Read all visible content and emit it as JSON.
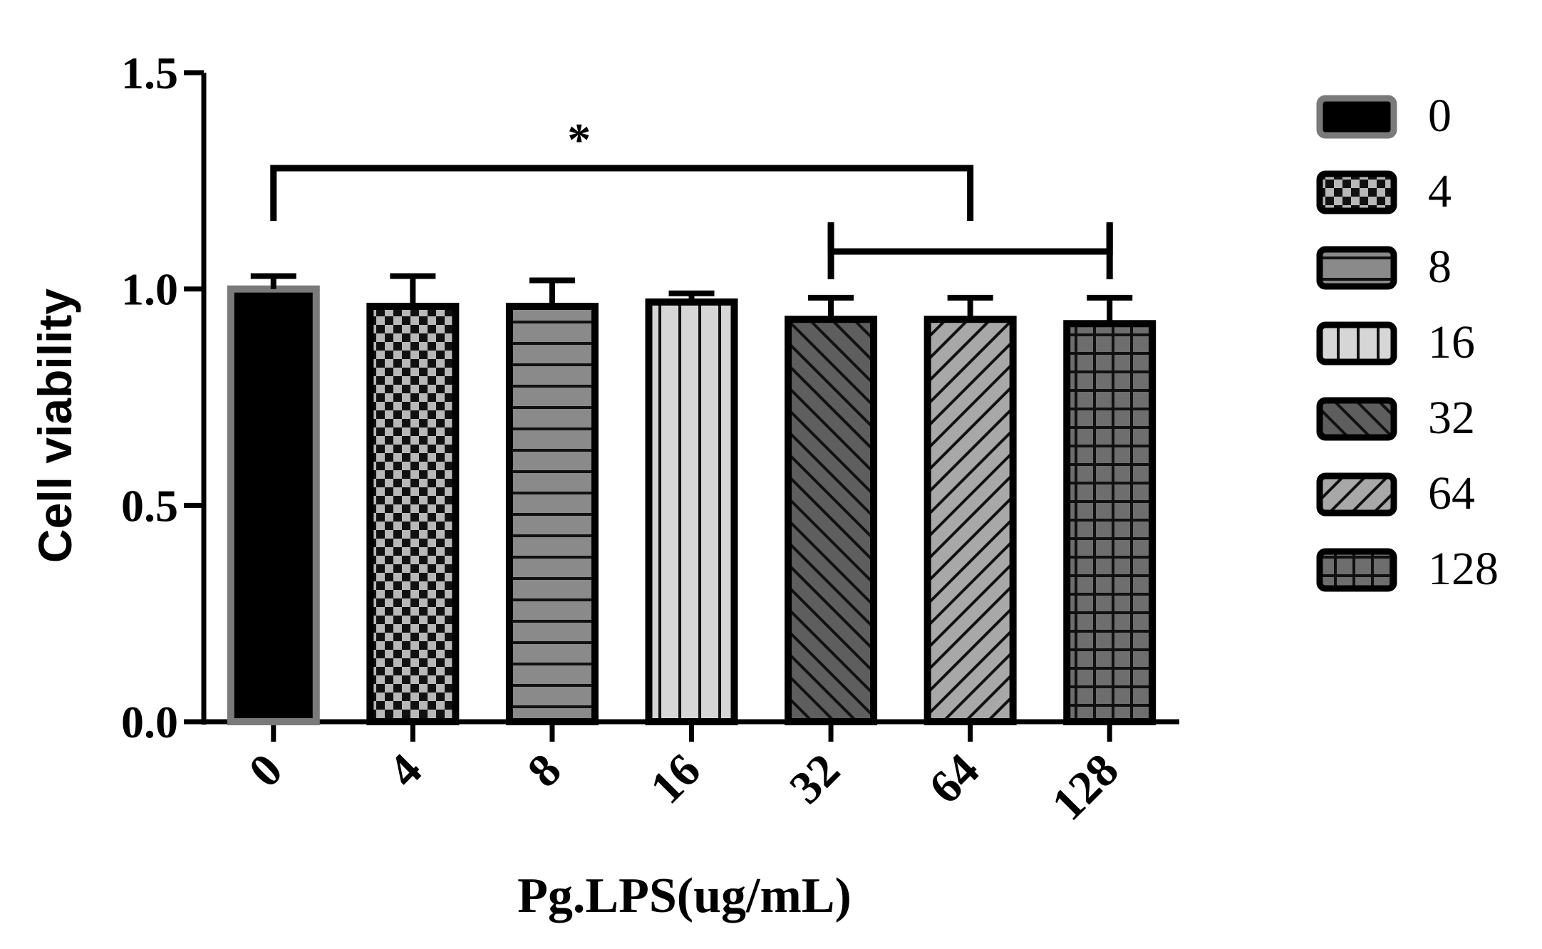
{
  "chart_data": {
    "type": "bar",
    "xlabel": "Pg.LPS(ug/mL)",
    "ylabel": "Cell viability",
    "ylim": [
      0,
      1.5
    ],
    "yticks": [
      "0.0",
      "0.5",
      "1.0",
      "1.5"
    ],
    "ytick_values": [
      0,
      0.5,
      1.0,
      1.5
    ],
    "categories": [
      "0",
      "4",
      "8",
      "16",
      "32",
      "64",
      "128"
    ],
    "values": [
      1.0,
      0.96,
      0.96,
      0.97,
      0.93,
      0.93,
      0.92
    ],
    "errors": [
      0.03,
      0.07,
      0.06,
      0.02,
      0.05,
      0.05,
      0.06
    ],
    "patterns": [
      "solid-black",
      "checker",
      "horizontal-lines",
      "vertical-lines",
      "diagonal-up",
      "diagonal-down",
      "grid"
    ],
    "fill_colors": [
      "#000000",
      "#b0b0b0",
      "#8a8a8a",
      "#d6d6d6",
      "#5e5e5e",
      "#a8a8a8",
      "#6e6e6e"
    ],
    "legend": {
      "placement": "right",
      "entries": [
        "0",
        "4",
        "8",
        "16",
        "32",
        "64",
        "128"
      ]
    },
    "significance": [
      {
        "from": 0,
        "to": 5,
        "label": "*"
      },
      {
        "from": 4,
        "to": 6,
        "label": ""
      }
    ],
    "grid": false
  }
}
